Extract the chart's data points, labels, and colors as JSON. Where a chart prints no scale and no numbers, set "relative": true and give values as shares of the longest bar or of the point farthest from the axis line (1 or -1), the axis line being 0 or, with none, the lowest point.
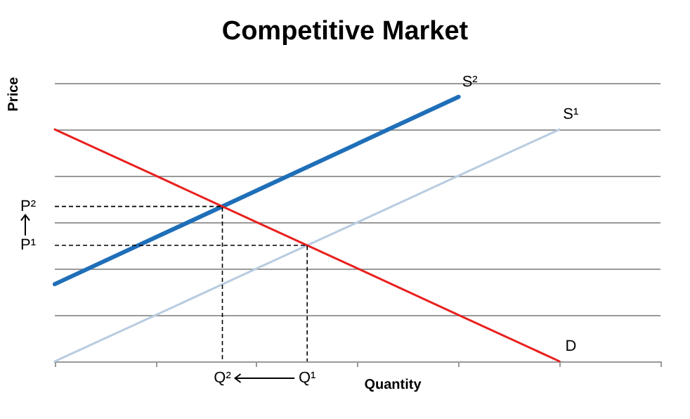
{
  "chart_data": {
    "type": "line",
    "title": "Competitive Market",
    "xlabel": "Quantity",
    "ylabel": "Price",
    "relative": true,
    "grid": "y",
    "marker": "none",
    "line_style": "solid",
    "categories": [
      null,
      null,
      null,
      null,
      null,
      null,
      null
    ],
    "series": [
      {
        "name": "S²",
        "color": "#1f6fb8",
        "values": [
          0.292,
          0.469,
          0.646,
          0.823,
          1.0,
          null,
          null
        ]
      },
      {
        "name": "S¹",
        "color": "#b8cce0",
        "values": [
          0,
          0.175,
          0.351,
          0.526,
          0.702,
          0.877,
          null
        ]
      },
      {
        "name": "D",
        "color": "#e8211f",
        "values": [
          0.877,
          0.702,
          0.526,
          0.351,
          0.175,
          0,
          null
        ]
      }
    ],
    "annotations": [
      "P²",
      "P¹",
      "Q²",
      "Q¹"
    ]
  }
}
